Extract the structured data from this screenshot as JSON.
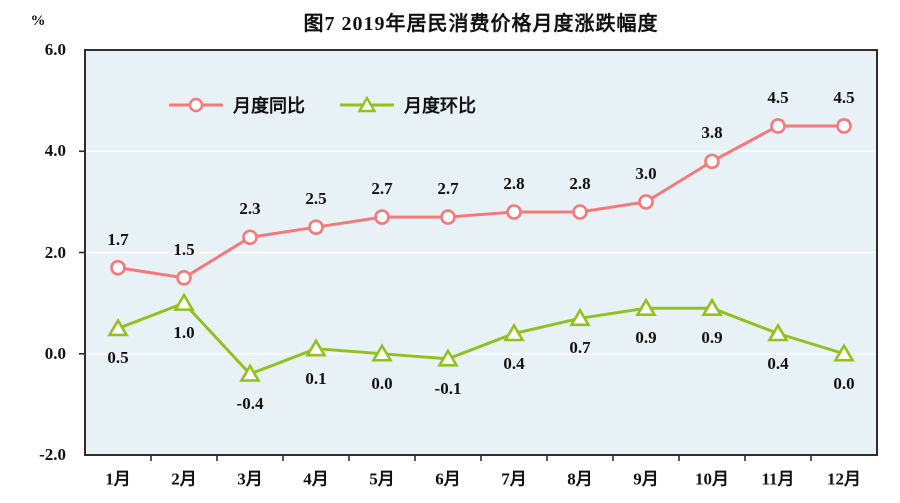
{
  "chart_data": {
    "type": "line",
    "title": "图7  2019年居民消费价格月度涨跌幅度",
    "unit": "%",
    "categories": [
      "1月",
      "2月",
      "3月",
      "4月",
      "5月",
      "6月",
      "7月",
      "8月",
      "9月",
      "10月",
      "11月",
      "12月"
    ],
    "series": [
      {
        "name": "月度同比",
        "marker": "circle",
        "color": "#f3797b",
        "label_position": "above",
        "values": [
          1.7,
          1.5,
          2.3,
          2.5,
          2.7,
          2.7,
          2.8,
          2.8,
          3.0,
          3.8,
          4.5,
          4.5
        ]
      },
      {
        "name": "月度环比",
        "marker": "triangle",
        "color": "#92c021",
        "label_position": "below",
        "values": [
          0.5,
          1.0,
          -0.4,
          0.1,
          0.0,
          -0.1,
          0.4,
          0.7,
          0.9,
          0.9,
          0.4,
          0.0
        ]
      }
    ],
    "ylim": [
      -2.0,
      6.0
    ],
    "ytick_step": 2.0,
    "ytick_labels": [
      "6.0",
      "4.0",
      "2.0",
      "0.0",
      "-2.0"
    ],
    "grid": "horizontal-white",
    "legend_position": "top-inside",
    "colors": {
      "plot_bg": "#e8f1f6",
      "grid": "#ffffff",
      "axis": "#2e2e2e",
      "text": "#111111"
    }
  }
}
